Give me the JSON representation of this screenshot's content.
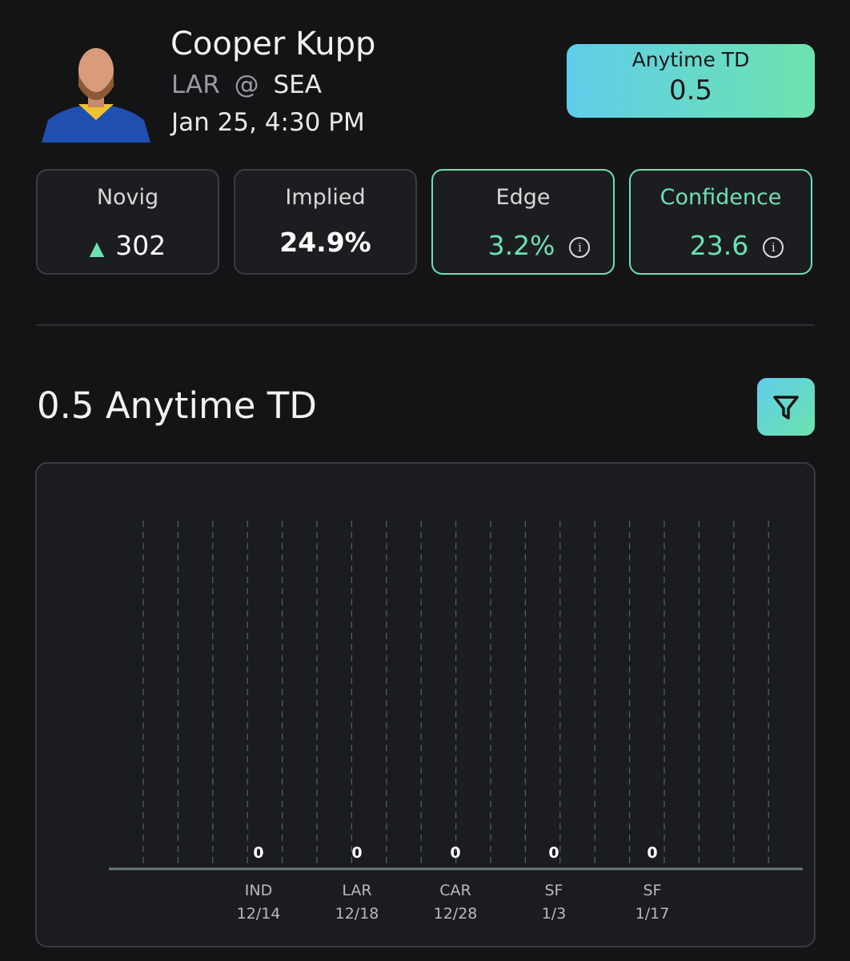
{
  "player": {
    "name": "Cooper Kupp",
    "matchup": {
      "away": "LAR",
      "separator": "@",
      "home": "SEA"
    },
    "datetime": "Jan 25, 4:30 PM"
  },
  "badge": {
    "label": "Anytime TD",
    "line": "0.5"
  },
  "cards": [
    {
      "label": "Novig",
      "value": "302"
    },
    {
      "label": "Implied",
      "value": "24.9%"
    },
    {
      "label": "Edge",
      "value": "3.2%"
    },
    {
      "label": "Confidence",
      "value": "23.6"
    }
  ],
  "section": {
    "title": "0.5 Anytime TD"
  },
  "chart_data": {
    "type": "bar",
    "categories": [
      {
        "team": "IND",
        "date": "12/14"
      },
      {
        "team": "LAR",
        "date": "12/18"
      },
      {
        "team": "CAR",
        "date": "12/28"
      },
      {
        "team": "SF",
        "date": "1/3"
      },
      {
        "team": "SF",
        "date": "1/17"
      }
    ],
    "values": [
      0,
      0,
      0,
      0,
      0
    ],
    "color": "#6ee0b4"
  }
}
